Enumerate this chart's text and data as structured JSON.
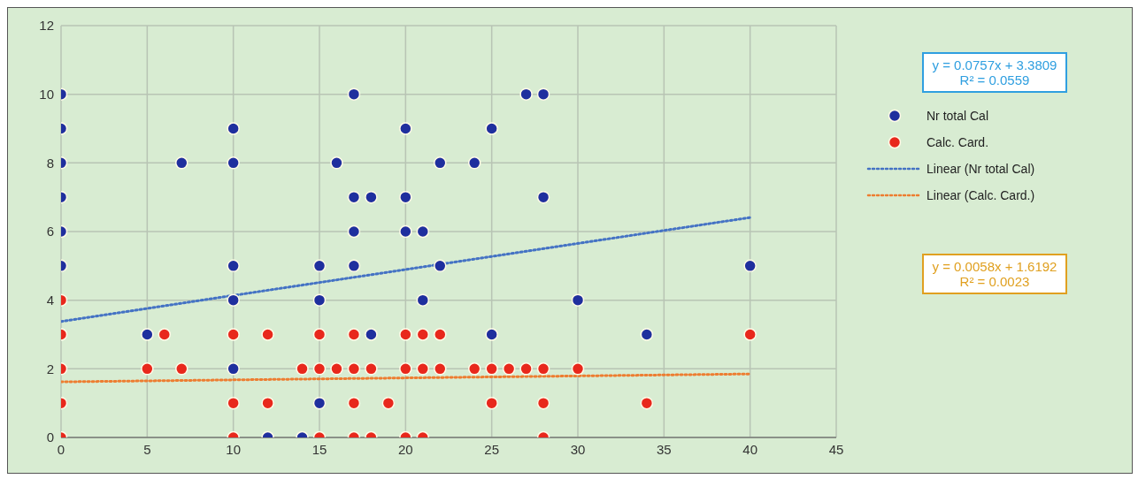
{
  "chart_data": {
    "type": "scatter",
    "xlim": [
      0,
      45
    ],
    "xticks": [
      0,
      5,
      10,
      15,
      20,
      25,
      30,
      35,
      40,
      45
    ],
    "ylim": [
      0,
      12
    ],
    "yticks": [
      0,
      2,
      4,
      6,
      8,
      10,
      12
    ],
    "grid": true,
    "legend": "right",
    "marker": "circle",
    "series": [
      {
        "name": "Nr total Cal",
        "color": "#1f2f9e",
        "x": [
          0,
          0,
          0,
          0,
          0,
          0,
          5,
          7,
          10,
          10,
          10,
          10,
          10,
          12,
          14,
          15,
          15,
          15,
          16,
          17,
          17,
          17,
          17,
          18,
          18,
          20,
          20,
          20,
          21,
          21,
          22,
          22,
          24,
          25,
          25,
          27,
          28,
          28,
          30,
          34,
          40
        ],
        "values": [
          5,
          6,
          7,
          8,
          9,
          10,
          3,
          8,
          9,
          8,
          5,
          4,
          2,
          0,
          0,
          5,
          4,
          1,
          8,
          10,
          7,
          6,
          5,
          7,
          3,
          9,
          7,
          6,
          6,
          4,
          8,
          5,
          8,
          9,
          3,
          10,
          10,
          7,
          4,
          3,
          5
        ]
      },
      {
        "name": "Calc. Card.",
        "color": "#e8281c",
        "x": [
          0,
          0,
          0,
          0,
          0,
          5,
          6,
          7,
          10,
          10,
          10,
          12,
          12,
          14,
          15,
          15,
          15,
          16,
          17,
          17,
          17,
          17,
          18,
          18,
          19,
          20,
          20,
          20,
          21,
          21,
          21,
          22,
          22,
          24,
          25,
          25,
          26,
          27,
          28,
          28,
          28,
          30,
          34,
          40
        ],
        "values": [
          4,
          3,
          2,
          1,
          0,
          2,
          3,
          2,
          3,
          1,
          0,
          3,
          1,
          2,
          3,
          2,
          0,
          2,
          3,
          2,
          1,
          0,
          2,
          0,
          1,
          3,
          2,
          0,
          3,
          2,
          0,
          3,
          2,
          2,
          2,
          1,
          2,
          2,
          2,
          1,
          0,
          2,
          1,
          3
        ]
      },
      {
        "name": "Linear (Nr total Cal)",
        "type": "line",
        "color": "#4472c4",
        "line_style": "dotted",
        "marker": "none",
        "x": [
          0,
          40
        ],
        "values": [
          3.38,
          6.41
        ]
      },
      {
        "name": "Linear (Calc. Card.)",
        "type": "line",
        "color": "#ed7d31",
        "line_style": "dotted",
        "marker": "none",
        "x": [
          0,
          40
        ],
        "values": [
          1.62,
          1.85
        ]
      }
    ],
    "annotations": [
      "y = 0.0757x + 3.3809\nR² = 0.0559",
      "y = 0.0058x + 1.6192\nR² = 0.0023"
    ]
  }
}
